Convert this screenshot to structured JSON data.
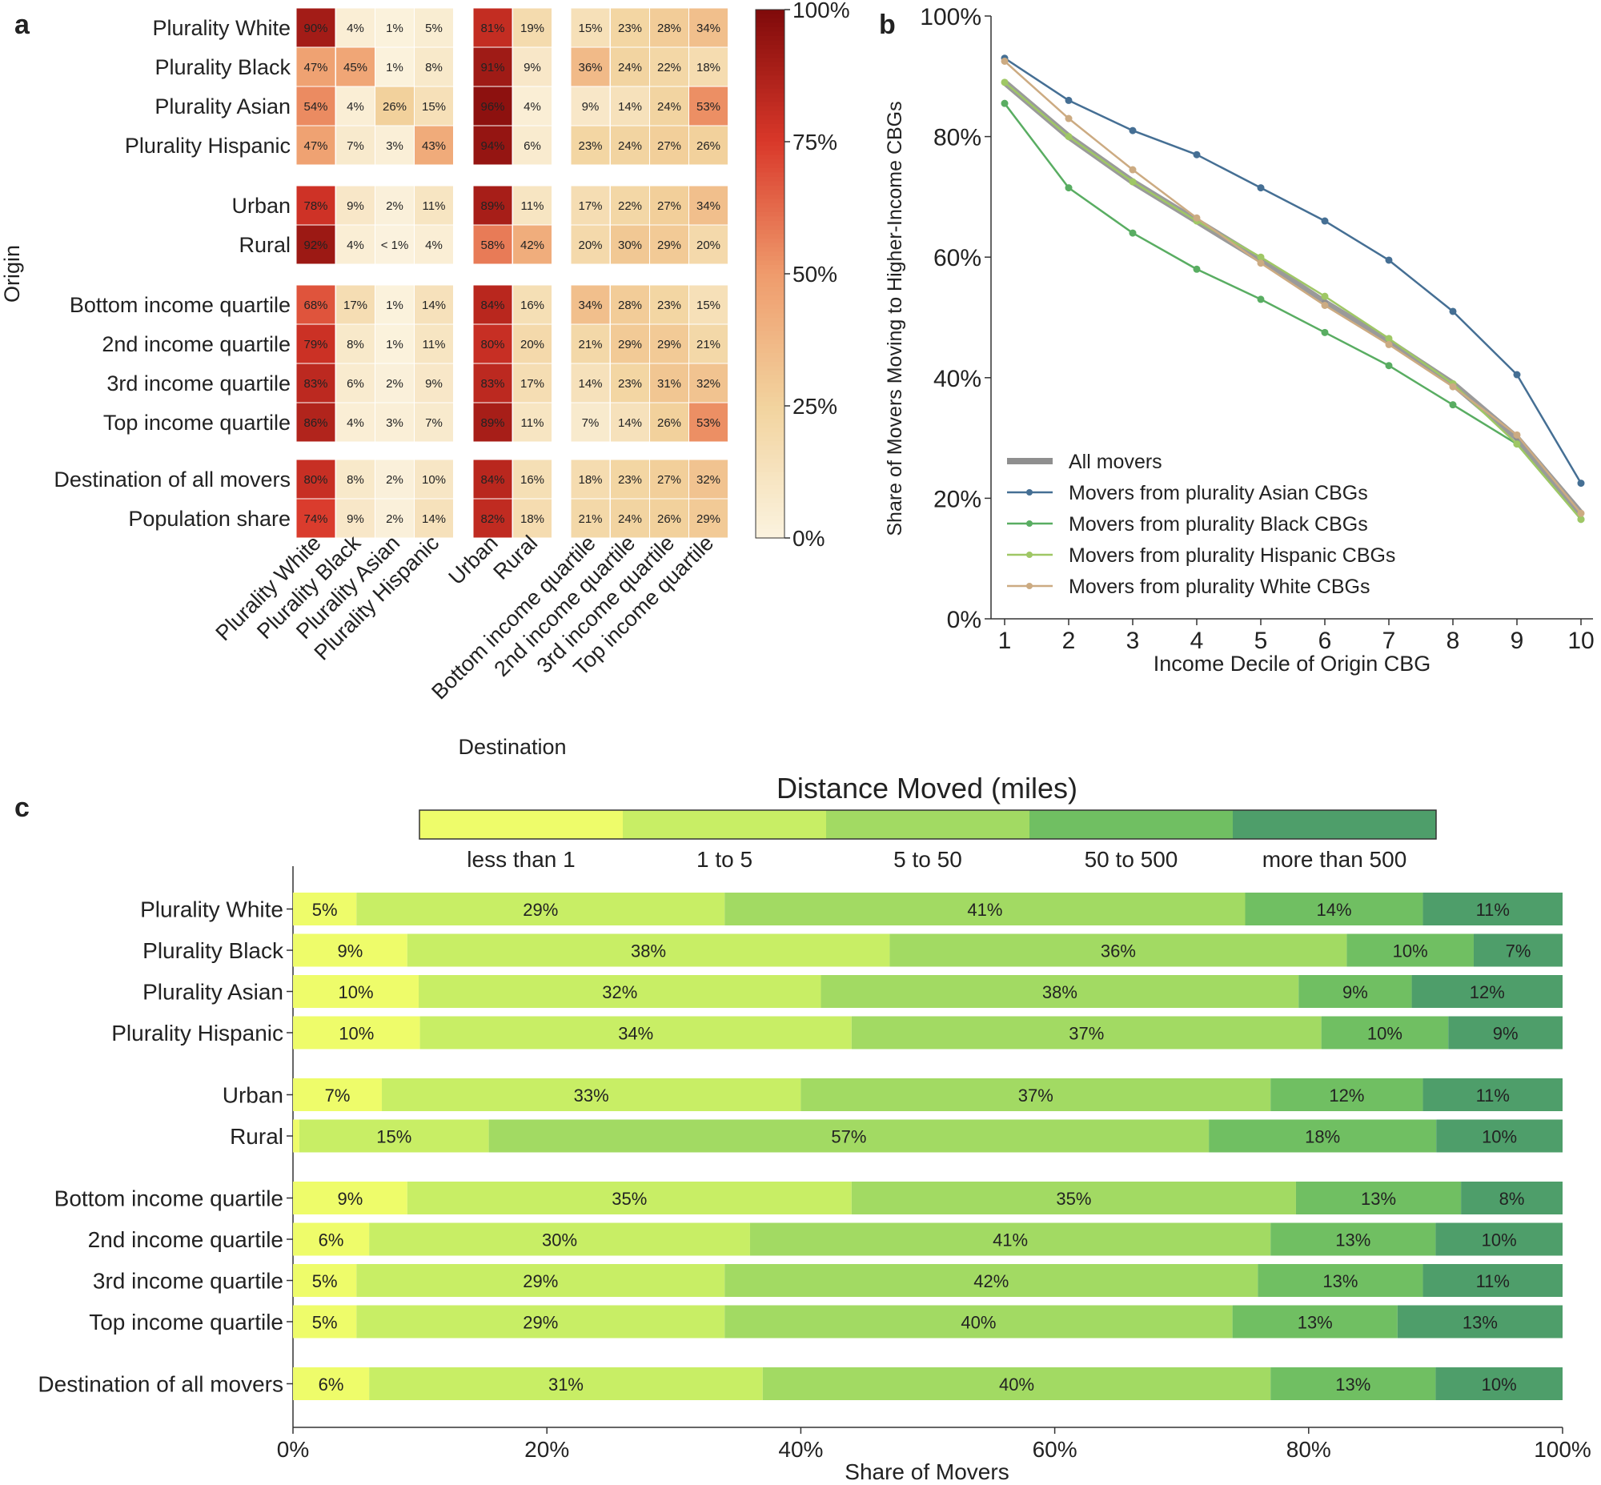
{
  "panel_labels": {
    "a": "a",
    "b": "b",
    "c": "c"
  },
  "colors": {
    "heat_low": "#fbf3df",
    "heat_mid1": "#f2d39e",
    "heat_mid2": "#ef9b6c",
    "heat_mid3": "#d9382a",
    "heat_high": "#7f0a0a",
    "line_all": "#8f8f8f",
    "line_asian": "#456f94",
    "line_black": "#59ad62",
    "line_hispanic": "#9fc765",
    "line_white": "#ccab82",
    "dist": [
      "#eefc6a",
      "#c8ee65",
      "#a2da63",
      "#70bf62",
      "#4e9e6a"
    ]
  },
  "chart_data": [
    {
      "type": "heatmap",
      "panel": "a",
      "ylabel": "Origin",
      "xlabel": "Destination",
      "rows": [
        [
          "Plurality White",
          "Plurality Black",
          "Plurality Asian",
          "Plurality Hispanic"
        ],
        [
          "Urban",
          "Rural"
        ],
        [
          "Bottom income quartile",
          "2nd income quartile",
          "3rd income quartile",
          "Top income quartile"
        ],
        [
          "Destination of all movers",
          "Population share"
        ]
      ],
      "columns": [
        [
          "Plurality White",
          "Plurality Black",
          "Plurality Asian",
          "Plurality Hispanic"
        ],
        [
          "Urban",
          "Rural"
        ],
        [
          "Bottom income quartile",
          "2nd income quartile",
          "3rd income quartile",
          "Top income quartile"
        ]
      ],
      "labels": [
        [
          [
            "90%",
            "4%",
            "1%",
            "5%"
          ],
          [
            "81%",
            "19%"
          ],
          [
            "15%",
            "23%",
            "28%",
            "34%"
          ]
        ],
        [
          [
            "47%",
            "45%",
            "1%",
            "8%"
          ],
          [
            "91%",
            "9%"
          ],
          [
            "36%",
            "24%",
            "22%",
            "18%"
          ]
        ],
        [
          [
            "54%",
            "4%",
            "26%",
            "15%"
          ],
          [
            "96%",
            "4%"
          ],
          [
            "9%",
            "14%",
            "24%",
            "53%"
          ]
        ],
        [
          [
            "47%",
            "7%",
            "3%",
            "43%"
          ],
          [
            "94%",
            "6%"
          ],
          [
            "23%",
            "24%",
            "27%",
            "26%"
          ]
        ],
        [
          [
            "78%",
            "9%",
            "2%",
            "11%"
          ],
          [
            "89%",
            "11%"
          ],
          [
            "17%",
            "22%",
            "27%",
            "34%"
          ]
        ],
        [
          [
            "92%",
            "4%",
            "< 1%",
            "4%"
          ],
          [
            "58%",
            "42%"
          ],
          [
            "20%",
            "30%",
            "29%",
            "20%"
          ]
        ],
        [
          [
            "68%",
            "17%",
            "1%",
            "14%"
          ],
          [
            "84%",
            "16%"
          ],
          [
            "34%",
            "28%",
            "23%",
            "15%"
          ]
        ],
        [
          [
            "79%",
            "8%",
            "1%",
            "11%"
          ],
          [
            "80%",
            "20%"
          ],
          [
            "21%",
            "29%",
            "29%",
            "21%"
          ]
        ],
        [
          [
            "83%",
            "6%",
            "2%",
            "9%"
          ],
          [
            "83%",
            "17%"
          ],
          [
            "14%",
            "23%",
            "31%",
            "32%"
          ]
        ],
        [
          [
            "86%",
            "4%",
            "3%",
            "7%"
          ],
          [
            "89%",
            "11%"
          ],
          [
            "7%",
            "14%",
            "26%",
            "53%"
          ]
        ],
        [
          [
            "80%",
            "8%",
            "2%",
            "10%"
          ],
          [
            "84%",
            "16%"
          ],
          [
            "18%",
            "23%",
            "27%",
            "32%"
          ]
        ],
        [
          [
            "74%",
            "9%",
            "2%",
            "14%"
          ],
          [
            "82%",
            "18%"
          ],
          [
            "21%",
            "24%",
            "26%",
            "29%"
          ]
        ]
      ],
      "colorbar": {
        "range": [
          0,
          100
        ],
        "ticks": [
          "0%",
          "25%",
          "50%",
          "75%",
          "100%"
        ]
      }
    },
    {
      "type": "line",
      "panel": "b",
      "xlabel": "Income Decile of Origin CBG",
      "ylabel": "Share of Movers Moving to Higher-Income CBGs",
      "x": [
        1,
        2,
        3,
        4,
        5,
        6,
        7,
        8,
        9,
        10
      ],
      "x_ticks": [
        "1",
        "2",
        "3",
        "4",
        "5",
        "6",
        "7",
        "8",
        "9",
        "10"
      ],
      "ylim": [
        0,
        100
      ],
      "y_ticks": [
        "0%",
        "20%",
        "40%",
        "60%",
        "80%",
        "100%"
      ],
      "legend_position": "lower-left",
      "series": [
        {
          "name": "All movers",
          "key": "all",
          "values": [
            89,
            80,
            72.5,
            66,
            59.5,
            52.5,
            46,
            39,
            30,
            17.5
          ]
        },
        {
          "name": "Movers from plurality Asian CBGs",
          "key": "asian",
          "values": [
            93,
            86,
            81,
            77,
            71.5,
            66,
            59.5,
            51,
            40.5,
            22.5
          ]
        },
        {
          "name": "Movers from plurality Black CBGs",
          "key": "black",
          "values": [
            85.5,
            71.5,
            64,
            58,
            53,
            47.5,
            42,
            35.5,
            29,
            16.5
          ]
        },
        {
          "name": "Movers from plurality Hispanic CBGs",
          "key": "hispanic",
          "values": [
            89,
            80,
            72.5,
            66,
            60,
            53.5,
            46.5,
            39,
            29,
            16.5
          ]
        },
        {
          "name": "Movers from plurality White CBGs",
          "key": "white",
          "values": [
            92.5,
            83,
            74.5,
            66.5,
            59,
            52,
            45.5,
            38.5,
            30.5,
            17.5
          ]
        }
      ]
    },
    {
      "type": "bar",
      "orientation": "horizontal-stacked",
      "panel": "c",
      "title": "Distance Moved (miles)",
      "xlabel": "Share of Movers",
      "xlim": [
        0,
        100
      ],
      "x_ticks": [
        "0%",
        "20%",
        "40%",
        "60%",
        "80%",
        "100%"
      ],
      "legend": [
        "less than 1",
        "1 to 5",
        "5 to 50",
        "50 to 500",
        "more than 500"
      ],
      "groups": [
        [
          {
            "name": "Plurality White",
            "values": [
              5,
              29,
              41,
              14,
              11
            ],
            "labels": [
              "5%",
              "29%",
              "41%",
              "14%",
              "11%"
            ]
          },
          {
            "name": "Plurality Black",
            "values": [
              9,
              38,
              36,
              10,
              7
            ],
            "labels": [
              "9%",
              "38%",
              "36%",
              "10%",
              "7%"
            ]
          },
          {
            "name": "Plurality Asian",
            "values": [
              10,
              32,
              38,
              9,
              12
            ],
            "labels": [
              "10%",
              "32%",
              "38%",
              "9%",
              "12%"
            ]
          },
          {
            "name": "Plurality Hispanic",
            "values": [
              10,
              34,
              37,
              10,
              9
            ],
            "labels": [
              "10%",
              "34%",
              "37%",
              "10%",
              "9%"
            ]
          }
        ],
        [
          {
            "name": "Urban",
            "values": [
              7,
              33,
              37,
              12,
              11
            ],
            "labels": [
              "7%",
              "33%",
              "37%",
              "12%",
              "11%"
            ]
          },
          {
            "name": "Rural",
            "values": [
              0.5,
              15,
              57,
              18,
              10
            ],
            "labels": [
              "",
              "15%",
              "57%",
              "18%",
              "10%"
            ]
          }
        ],
        [
          {
            "name": "Bottom income quartile",
            "values": [
              9,
              35,
              35,
              13,
              8
            ],
            "labels": [
              "9%",
              "35%",
              "35%",
              "13%",
              "8%"
            ]
          },
          {
            "name": "2nd income quartile",
            "values": [
              6,
              30,
              41,
              13,
              10
            ],
            "labels": [
              "6%",
              "30%",
              "41%",
              "13%",
              "10%"
            ]
          },
          {
            "name": "3rd income quartile",
            "values": [
              5,
              29,
              42,
              13,
              11
            ],
            "labels": [
              "5%",
              "29%",
              "42%",
              "13%",
              "11%"
            ]
          },
          {
            "name": "Top income quartile",
            "values": [
              5,
              29,
              40,
              13,
              13
            ],
            "labels": [
              "5%",
              "29%",
              "40%",
              "13%",
              "13%"
            ]
          }
        ],
        [
          {
            "name": "Destination of all movers",
            "values": [
              6,
              31,
              40,
              13,
              10
            ],
            "labels": [
              "6%",
              "31%",
              "40%",
              "13%",
              "10%"
            ]
          }
        ]
      ]
    }
  ]
}
